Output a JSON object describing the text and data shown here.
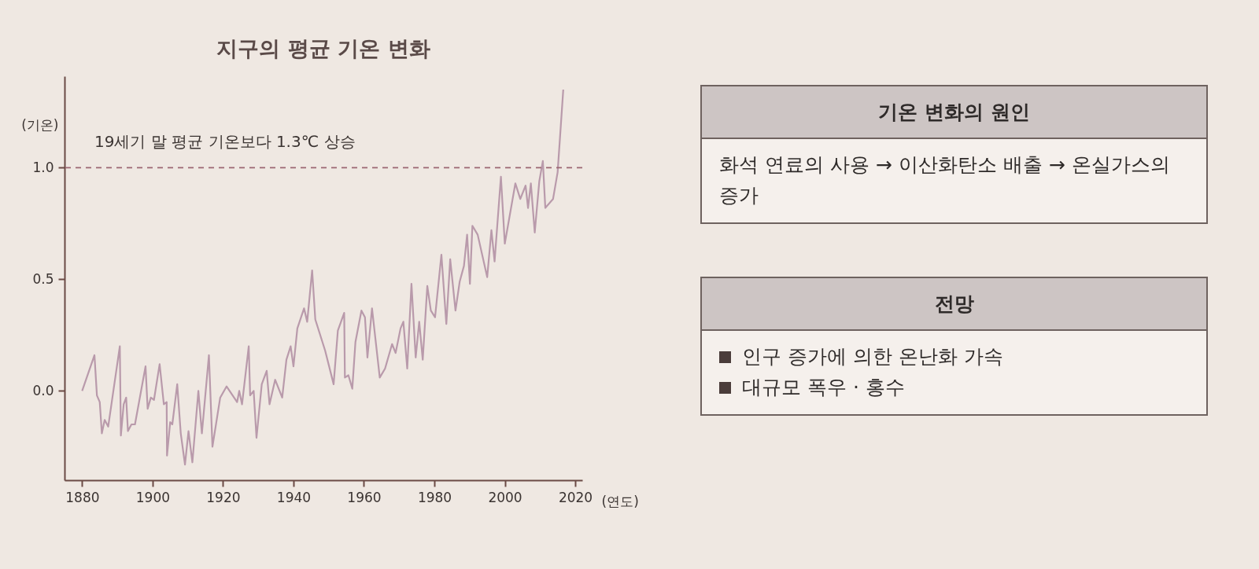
{
  "chart_data": [
    {
      "type": "line",
      "title": "지구의 평균 기온 변화",
      "xlabel": "(연도)",
      "ylabel": "(기온)",
      "xlim": [
        1875,
        2022
      ],
      "ylim": [
        -0.4,
        1.41
      ],
      "xticks": [
        1880,
        1900,
        1920,
        1940,
        1960,
        1980,
        2000,
        2020
      ],
      "yticks": [
        {
          "value": 0,
          "label": "0.0"
        },
        {
          "value": 0.5,
          "label": "0.5"
        },
        {
          "value": 1,
          "label": "1.0"
        }
      ],
      "ref_lines": [
        {
          "axis": "y",
          "value": 1,
          "label": "19세기 말 평균 기온보다 1.3℃ 상승",
          "color": "#9c6672",
          "line_style": "dashed"
        }
      ],
      "series": [
        {
          "color": "#b99aab",
          "x": [
            1880,
            1883.5,
            1884.2,
            1885,
            1885.6,
            1886.4,
            1887.4,
            1890.7,
            1891,
            1891.8,
            1892.5,
            1893,
            1894,
            1895,
            1898,
            1898.6,
            1899.5,
            1900.4,
            1902,
            1903.2,
            1904,
            1904.1,
            1905,
            1905.6,
            1907,
            1908,
            1909.2,
            1910.2,
            1911.3,
            1913,
            1914,
            1916,
            1917,
            1919.2,
            1921,
            1924,
            1924.6,
            1925.4,
            1927.3,
            1927.7,
            1928.7,
            1929.5,
            1931,
            1932.4,
            1933.2,
            1934.8,
            1936.8,
            1938,
            1939.2,
            1940,
            1941.1,
            1943,
            1943.9,
            1945.3,
            1946.2,
            1949,
            1951.4,
            1952.6,
            1954.4,
            1954.6,
            1955.6,
            1956.7,
            1957.6,
            1959.3,
            1960.3,
            1961,
            1962.3,
            1964.5,
            1966,
            1968,
            1969,
            1970.4,
            1971.2,
            1972.3,
            1973.5,
            1974.7,
            1975.7,
            1976.7,
            1978,
            1979,
            1980.2,
            1982,
            1983.4,
            1984.5,
            1986,
            1987.2,
            1988.4,
            1989.3,
            1990.1,
            1990.8,
            1992.3,
            1995,
            1996.2,
            1997.1,
            1998.9,
            2000,
            2003,
            2004.4,
            2005.9,
            2006.6,
            2007.4,
            2008.5,
            2009.8,
            2010.8,
            2011.5,
            2013.7,
            2015,
            2016.6
          ],
          "values": [
            0.0,
            0.16,
            -0.02,
            -0.05,
            -0.19,
            -0.13,
            -0.16,
            0.2,
            -0.2,
            -0.06,
            -0.03,
            -0.18,
            -0.15,
            -0.15,
            0.11,
            -0.08,
            -0.03,
            -0.04,
            0.12,
            -0.06,
            -0.05,
            -0.29,
            -0.14,
            -0.15,
            0.03,
            -0.19,
            -0.33,
            -0.18,
            -0.32,
            0.0,
            -0.19,
            0.16,
            -0.25,
            -0.03,
            0.02,
            -0.05,
            0.0,
            -0.06,
            0.2,
            -0.02,
            0.0,
            -0.21,
            0.03,
            0.09,
            -0.06,
            0.05,
            -0.03,
            0.14,
            0.2,
            0.11,
            0.28,
            0.37,
            0.31,
            0.54,
            0.32,
            0.18,
            0.03,
            0.27,
            0.35,
            0.06,
            0.07,
            0.01,
            0.22,
            0.36,
            0.33,
            0.15,
            0.37,
            0.06,
            0.1,
            0.21,
            0.17,
            0.28,
            0.31,
            0.1,
            0.48,
            0.15,
            0.31,
            0.14,
            0.47,
            0.36,
            0.33,
            0.61,
            0.3,
            0.59,
            0.36,
            0.49,
            0.56,
            0.7,
            0.48,
            0.74,
            0.7,
            0.51,
            0.72,
            0.58,
            0.96,
            0.66,
            0.93,
            0.86,
            0.92,
            0.82,
            0.93,
            0.71,
            0.94,
            1.03,
            0.82,
            0.86,
            0.98,
            1.35
          ]
        }
      ]
    },
    {
      "type": "other",
      "title": "기온 변화의 원인",
      "annotations": [
        "화석 연료의 사용 → 이산화탄소 배출 → 온실가스의 증가"
      ]
    },
    {
      "type": "other",
      "title": "전망",
      "annotations": [
        "인구 증가에 의한 온난화 가속",
        "대규모 폭우 · 홍수"
      ]
    }
  ]
}
